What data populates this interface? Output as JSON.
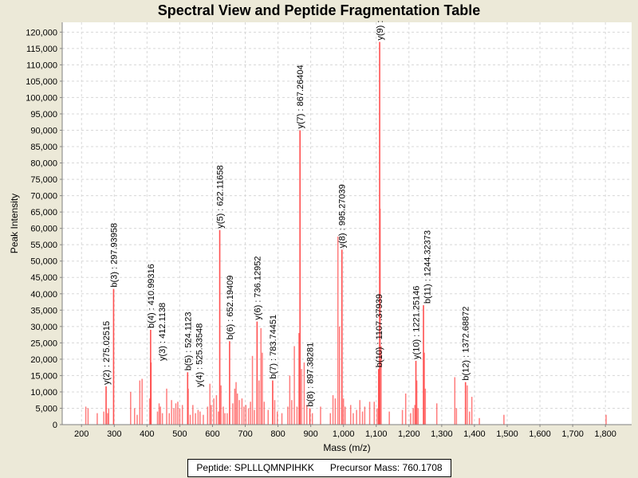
{
  "chart_data": {
    "type": "bar",
    "title": "Spectral View and Peptide Fragmentation Table",
    "xlabel": "Mass (m/z)",
    "ylabel": "Peak Intensity",
    "xlim": [
      141,
      1880
    ],
    "ylim": [
      0,
      123000
    ],
    "xticks": [
      200,
      300,
      400,
      500,
      600,
      700,
      800,
      900,
      1000,
      1100,
      1200,
      1300,
      1400,
      1500,
      1600,
      1700,
      1800
    ],
    "xtick_labels": [
      "200",
      "300",
      "400",
      "500",
      "600",
      "700",
      "800",
      "900",
      "1,000",
      "1,100",
      "1,200",
      "1,300",
      "1,400",
      "1,500",
      "1,600",
      "1,700",
      "1,800"
    ],
    "yticks": [
      0,
      5000,
      10000,
      15000,
      20000,
      25000,
      30000,
      35000,
      40000,
      45000,
      50000,
      55000,
      60000,
      65000,
      70000,
      75000,
      80000,
      85000,
      90000,
      95000,
      100000,
      105000,
      110000,
      115000,
      120000
    ],
    "ytick_labels": [
      "0",
      "5,000",
      "10,000",
      "15,000",
      "20,000",
      "25,000",
      "30,000",
      "35,000",
      "40,000",
      "45,000",
      "50,000",
      "55,000",
      "60,000",
      "65,000",
      "70,000",
      "75,000",
      "80,000",
      "85,000",
      "90,000",
      "95,000",
      "100,000",
      "105,000",
      "110,000",
      "115,000",
      "120,000"
    ],
    "grid": true,
    "color": "#ff5050",
    "annotated_peaks": [
      {
        "mz": 275.02515,
        "intensity": 11700,
        "label": "y(2) : 275.02515"
      },
      {
        "mz": 297.93958,
        "intensity": 41500,
        "label": "b(3) : 297.93958"
      },
      {
        "mz": 410.99316,
        "intensity": 29000,
        "label": "b(4) : 410.99316"
      },
      {
        "mz": 412.1138,
        "intensity": 19000,
        "label": "y(3) : 412.1138"
      },
      {
        "mz": 524.1123,
        "intensity": 16000,
        "label": "b(5) : 524.1123"
      },
      {
        "mz": 525.33548,
        "intensity": 11000,
        "label": "y(4) : 525.33548"
      },
      {
        "mz": 622.11658,
        "intensity": 59500,
        "label": "y(5) : 622.11658"
      },
      {
        "mz": 652.19409,
        "intensity": 25500,
        "label": "b(6) : 652.19409"
      },
      {
        "mz": 736.12952,
        "intensity": 31500,
        "label": "y(6) : 736.12952"
      },
      {
        "mz": 783.74451,
        "intensity": 13500,
        "label": "b(7) : 783.74451"
      },
      {
        "mz": 867.26404,
        "intensity": 90000,
        "label": "y(7) : 867.26404"
      },
      {
        "mz": 897.38281,
        "intensity": 5000,
        "label": "b(8) : 897.38281"
      },
      {
        "mz": 995.27039,
        "intensity": 53500,
        "label": "y(8) : 995.27039"
      },
      {
        "mz": 1107.37939,
        "intensity": 17000,
        "label": "b(10) : 1107.37939"
      },
      {
        "mz": 1110.5,
        "intensity": 117000,
        "label": "y(9) :"
      },
      {
        "mz": 1221.25146,
        "intensity": 19500,
        "label": "y(10) : 1221.25146"
      },
      {
        "mz": 1244.32373,
        "intensity": 36500,
        "label": "b(11) : 1244.32373"
      },
      {
        "mz": 1372.68872,
        "intensity": 13000,
        "label": "b(12) : 1372.68872"
      }
    ],
    "other_peaks": [
      [
        213,
        5500
      ],
      [
        220,
        5000
      ],
      [
        248,
        3500
      ],
      [
        268,
        4000
      ],
      [
        280,
        3500
      ],
      [
        283,
        5000
      ],
      [
        350,
        10000
      ],
      [
        362,
        5000
      ],
      [
        370,
        3000
      ],
      [
        378,
        13500
      ],
      [
        385,
        14000
      ],
      [
        408,
        8000
      ],
      [
        432,
        4000
      ],
      [
        437,
        6500
      ],
      [
        441,
        5500
      ],
      [
        447,
        3500
      ],
      [
        460,
        11000
      ],
      [
        468,
        3500
      ],
      [
        475,
        7500
      ],
      [
        482,
        5000
      ],
      [
        488,
        6500
      ],
      [
        494,
        7000
      ],
      [
        500,
        5000
      ],
      [
        508,
        6000
      ],
      [
        532,
        3000
      ],
      [
        540,
        6000
      ],
      [
        548,
        3500
      ],
      [
        556,
        4500
      ],
      [
        562,
        4000
      ],
      [
        572,
        3000
      ],
      [
        585,
        5500
      ],
      [
        592,
        12500
      ],
      [
        596,
        6000
      ],
      [
        604,
        8000
      ],
      [
        612,
        9000
      ],
      [
        618,
        4000
      ],
      [
        626,
        12000
      ],
      [
        633,
        5500
      ],
      [
        638,
        3500
      ],
      [
        645,
        3500
      ],
      [
        662,
        6500
      ],
      [
        668,
        11000
      ],
      [
        672,
        13000
      ],
      [
        676,
        9500
      ],
      [
        682,
        7500
      ],
      [
        690,
        8000
      ],
      [
        696,
        5500
      ],
      [
        702,
        6000
      ],
      [
        710,
        5000
      ],
      [
        716,
        7000
      ],
      [
        722,
        21000
      ],
      [
        728,
        4500
      ],
      [
        742,
        13500
      ],
      [
        748,
        29500
      ],
      [
        752,
        22000
      ],
      [
        758,
        7000
      ],
      [
        770,
        4500
      ],
      [
        790,
        7500
      ],
      [
        798,
        4000
      ],
      [
        812,
        3500
      ],
      [
        830,
        5500
      ],
      [
        836,
        15000
      ],
      [
        842,
        7500
      ],
      [
        850,
        24000
      ],
      [
        858,
        5500
      ],
      [
        864,
        28000
      ],
      [
        872,
        17000
      ],
      [
        880,
        19000
      ],
      [
        888,
        6000
      ],
      [
        905,
        3500
      ],
      [
        930,
        5500
      ],
      [
        960,
        3500
      ],
      [
        968,
        9000
      ],
      [
        975,
        8000
      ],
      [
        983,
        57500
      ],
      [
        988,
        30000
      ],
      [
        1000,
        8000
      ],
      [
        1005,
        5500
      ],
      [
        1022,
        6000
      ],
      [
        1030,
        3500
      ],
      [
        1040,
        4500
      ],
      [
        1050,
        7500
      ],
      [
        1058,
        4000
      ],
      [
        1065,
        5500
      ],
      [
        1080,
        7000
      ],
      [
        1094,
        7000
      ],
      [
        1103,
        5000
      ],
      [
        1112,
        66000
      ],
      [
        1115,
        24000
      ],
      [
        1140,
        4000
      ],
      [
        1180,
        4500
      ],
      [
        1190,
        9500
      ],
      [
        1205,
        3500
      ],
      [
        1213,
        5000
      ],
      [
        1218,
        6000
      ],
      [
        1224,
        13500
      ],
      [
        1228,
        5000
      ],
      [
        1247,
        22000
      ],
      [
        1250,
        11000
      ],
      [
        1285,
        6500
      ],
      [
        1340,
        14500
      ],
      [
        1345,
        5000
      ],
      [
        1378,
        12000
      ],
      [
        1385,
        4000
      ],
      [
        1392,
        8500
      ],
      [
        1415,
        2000
      ],
      [
        1490,
        3000
      ],
      [
        1802,
        3000
      ]
    ],
    "legend": {
      "peptide": "Peptide: SPLLLQMNPIHKK",
      "precursor": "Precursor Mass: 760.1708"
    }
  }
}
